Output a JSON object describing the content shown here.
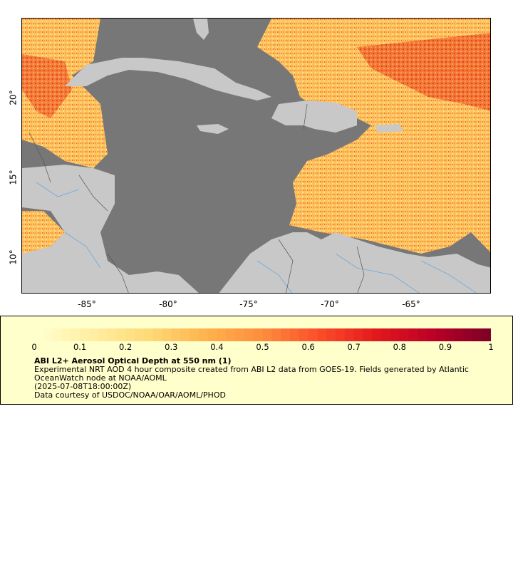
{
  "map": {
    "lon_ticks": [
      "-85°",
      "-80°",
      "-75°",
      "-70°",
      "-65°"
    ],
    "lat_ticks": [
      "20°",
      "15°",
      "10°"
    ],
    "lon_range": [
      -89,
      -60
    ],
    "lat_range": [
      8,
      25
    ],
    "colors": {
      "ocean_nodata": "#777777",
      "land": "#c8c8c8",
      "rivers": "#6fa8dc",
      "borders": "#555555"
    }
  },
  "legend": {
    "title": "ABI L2+ Aerosol Optical Depth at 550 nm (1)",
    "description": "Experimental NRT AOD 4 hour composite created from ABI L2 data from GOES-19. Fields generated by Atlantic OceanWatch node at NOAA/AOML",
    "date": "(2025-07-08T18:00:00Z)",
    "credit": "Data courtesy of USDOC/NOAA/OAR/AOML/PHOD",
    "ticks": [
      "0",
      "0.1",
      "0.2",
      "0.3",
      "0.4",
      "0.5",
      "0.6",
      "0.7",
      "0.8",
      "0.9",
      "1"
    ],
    "range": [
      0,
      1
    ],
    "colormap": [
      "#ffffcc",
      "#ffeda0",
      "#fed976",
      "#feb24c",
      "#fd8d3c",
      "#fc4e2a",
      "#e31a1c",
      "#bd0026",
      "#800026"
    ]
  }
}
